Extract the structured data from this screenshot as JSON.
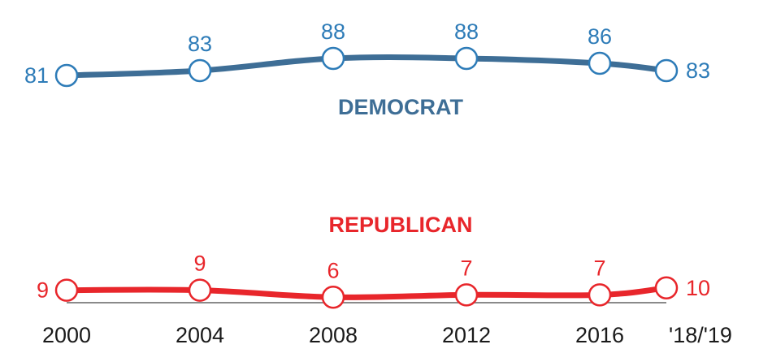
{
  "chart_data": {
    "type": "line",
    "title": "",
    "xlabel": "",
    "ylabel": "",
    "x": [
      "2000",
      "2004",
      "2008",
      "2012",
      "2016",
      "'18/'19"
    ],
    "series": [
      {
        "name": "DEMOCRAT",
        "color": "#3e6e96",
        "marker_color": "#2e7cb8",
        "label_color": "#2e7cb8",
        "values": [
          81,
          83,
          88,
          88,
          86,
          83
        ]
      },
      {
        "name": "REPUBLICAN",
        "color": "#e8262b",
        "marker_color": "#e8262b",
        "label_color": "#e8262b",
        "values": [
          9,
          9,
          6,
          7,
          7,
          10
        ]
      }
    ],
    "grid": false,
    "legend": "series names placed inline, centered under/above each line",
    "baseline_color": "#8a8a8a"
  }
}
